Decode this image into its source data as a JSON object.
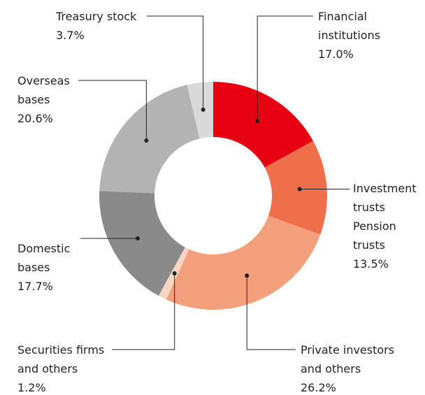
{
  "chart_data": {
    "type": "donut",
    "categories": [
      "Financial institutions",
      "Investment trusts Pension trusts",
      "Private investors and others",
      "Securities firms and others",
      "Domestic bases",
      "Overseas bases",
      "Treasury stock"
    ],
    "values": [
      17.0,
      13.5,
      26.2,
      1.2,
      17.7,
      20.6,
      3.7
    ],
    "value_labels": [
      "17.0%",
      "13.5%",
      "26.2%",
      "1.2%",
      "17.7%",
      "20.6%",
      "3.7%"
    ],
    "colors": [
      "#e60012",
      "#ee6f4a",
      "#f4a07c",
      "#f9d5c4",
      "#8a8a8a",
      "#b3b3b3",
      "#d9d9d9"
    ]
  }
}
